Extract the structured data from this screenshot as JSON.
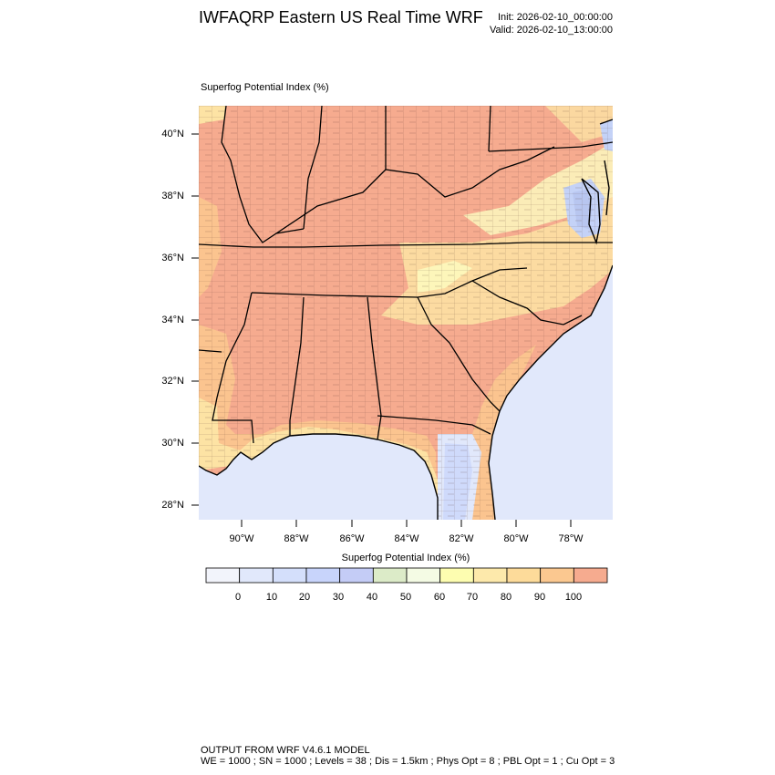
{
  "header": {
    "title": "IWFAQRP Eastern US Real Time WRF",
    "init": "Init: 2026-02-10_00:00:00",
    "valid": "Valid: 2026-02-10_13:00:00"
  },
  "field_label": "Superfog Potential Index   (%)",
  "map": {
    "lat_labels": [
      "40°N",
      "38°N",
      "36°N",
      "34°N",
      "32°N",
      "30°N",
      "28°N"
    ],
    "lon_labels": [
      "90°W",
      "88°W",
      "86°W",
      "84°W",
      "82°W",
      "80°W",
      "78°W"
    ],
    "colors": {
      "ocean": "#e1e8fb",
      "high": "#f6ab8f",
      "mid": "#fbc48f",
      "low": "#fde3a4",
      "pale": "#fdfdc0",
      "blue": "#c4d2f7"
    }
  },
  "colorbar": {
    "title": "Superfog Potential Index  (%)",
    "labels": [
      "0",
      "10",
      "20",
      "30",
      "40",
      "50",
      "60",
      "70",
      "80",
      "90",
      "100"
    ],
    "colors": [
      "#f2f4fb",
      "#e1e8fb",
      "#d4dffb",
      "#c8d4fb",
      "#c4ccf6",
      "#dcebc8",
      "#f4fbe4",
      "#fdfdb0",
      "#fde9ab",
      "#fddb9a",
      "#fbc890",
      "#f6ab8f"
    ]
  },
  "footer": {
    "line1": "OUTPUT FROM WRF V4.6.1 MODEL",
    "line2": "WE = 1000 ; SN = 1000 ; Levels = 38 ; Dis = 1.5km ; Phys Opt = 8 ; PBL Opt = 1 ; Cu Opt = 3"
  }
}
